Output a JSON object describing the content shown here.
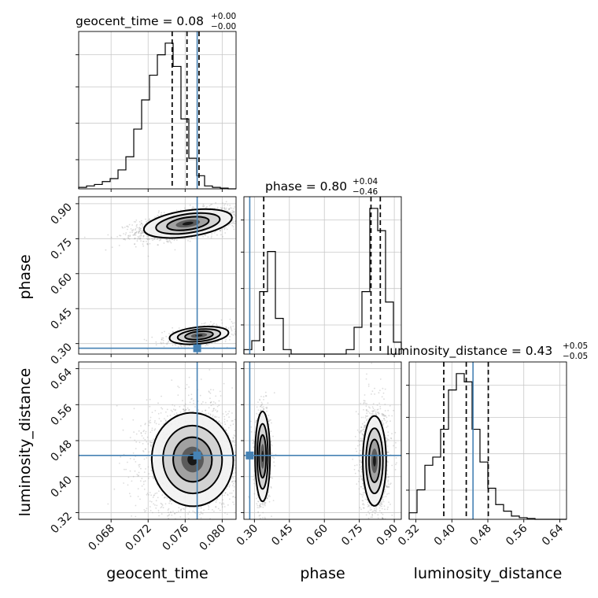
{
  "chart_data": {
    "type": "corner",
    "params": [
      "geocent_time",
      "phase",
      "luminosity_distance"
    ],
    "truth": {
      "geocent_time": 0.0773,
      "phase": 0.28,
      "luminosity_distance": 0.447
    },
    "colors": {
      "truth": "#4682b4",
      "hist": "#000000",
      "grid": "#c8c8c8",
      "points": "#9a9a9a"
    },
    "geocent_time": {
      "title": {
        "main": "geocent_time = 0.08",
        "sup": "+0.00",
        "sub": "−0.00"
      },
      "range": [
        0.0645,
        0.0815
      ],
      "ticks": [
        0.068,
        0.072,
        0.076,
        0.08
      ],
      "tick_labels": [
        "0.068",
        "0.072",
        "0.076",
        "0.080"
      ],
      "xlabel": "geocent_time",
      "quantiles": [
        0.0746,
        0.0762,
        0.0775
      ],
      "hist": {
        "edges_start": 0.0645,
        "bin_width": 0.00085,
        "counts": [
          0.01,
          0.02,
          0.03,
          0.05,
          0.07,
          0.13,
          0.22,
          0.41,
          0.61,
          0.78,
          0.92,
          1.0,
          0.84,
          0.48,
          0.21,
          0.09,
          0.02,
          0.01,
          0.005,
          0.0
        ]
      }
    },
    "phase": {
      "title": {
        "main": "phase = 0.80",
        "sup": "+0.04",
        "sub": "−0.46"
      },
      "range": [
        0.255,
        0.93
      ],
      "ticks": [
        0.3,
        0.45,
        0.6,
        0.75,
        0.9
      ],
      "tick_labels": [
        "0.30",
        "0.45",
        "0.60",
        "0.75",
        "0.90"
      ],
      "xlabel": "phase",
      "ylabel": "phase",
      "quantiles": [
        0.34,
        0.8,
        0.84
      ],
      "hist": {
        "edges_start": 0.255,
        "bin_width": 0.03375,
        "counts": [
          0.03,
          0.09,
          0.42,
          0.69,
          0.24,
          0.03,
          0,
          0,
          0,
          0,
          0,
          0,
          0,
          0.03,
          0.18,
          0.42,
          0.98,
          0.83,
          0.35,
          0.08
        ]
      }
    },
    "luminosity_distance": {
      "title": {
        "main": "luminosity_distance = 0.43",
        "sup": "+0.05",
        "sub": "−0.05"
      },
      "range": [
        0.305,
        0.655
      ],
      "ticks": [
        0.32,
        0.4,
        0.48,
        0.56,
        0.64
      ],
      "tick_labels": [
        "0.32",
        "0.40",
        "0.48",
        "0.56",
        "0.64"
      ],
      "xlabel": "luminosity_distance",
      "ylabel": "luminosity_distance",
      "quantiles": [
        0.382,
        0.432,
        0.481
      ],
      "hist": {
        "edges_start": 0.305,
        "bin_width": 0.0175,
        "counts": [
          0.04,
          0.18,
          0.33,
          0.38,
          0.55,
          0.79,
          0.89,
          0.84,
          0.55,
          0.35,
          0.19,
          0.09,
          0.05,
          0.02,
          0.01,
          0.005,
          0.0,
          0.0,
          0.0,
          0.0
        ]
      }
    },
    "blobs": {
      "phase_vs_geocent_time": [
        {
          "x": 0.0763,
          "y": 0.815,
          "sx": 0.0024,
          "sy": 0.028,
          "rho": 0.55,
          "n": 2200
        },
        {
          "x": 0.0775,
          "y": 0.335,
          "sx": 0.0016,
          "sy": 0.018,
          "rho": 0.4,
          "n": 700
        }
      ],
      "luminosity_distance_vs_geocent_time": [
        {
          "x": 0.0768,
          "y": 0.438,
          "sx": 0.0022,
          "sy": 0.052,
          "rho": 0.05,
          "n": 2600
        }
      ],
      "luminosity_distance_vs_phase": [
        {
          "x": 0.815,
          "y": 0.435,
          "sx": 0.025,
          "sy": 0.05,
          "rho": 0.0,
          "n": 1800
        },
        {
          "x": 0.335,
          "y": 0.445,
          "sx": 0.016,
          "sy": 0.05,
          "rho": 0.0,
          "n": 800
        }
      ]
    },
    "grid": true
  }
}
